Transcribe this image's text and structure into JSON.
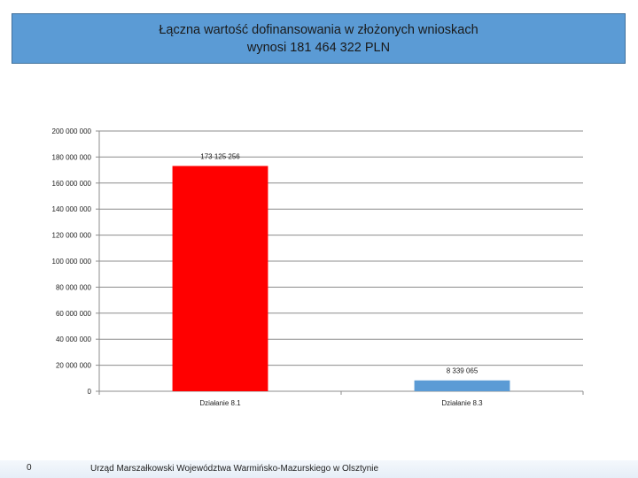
{
  "title": {
    "line1": "Łączna wartość dofinansowania w złożonych wnioskach",
    "line2": "wynosi 181 464 322 PLN"
  },
  "footer": {
    "slide_number": "0",
    "text": "Urząd Marszałkowski Województwa Warmińsko-Mazurskiego w Olsztynie"
  },
  "chart_data": {
    "type": "bar",
    "categories": [
      "Działanie 8.1",
      "Działanie 8.3"
    ],
    "values": [
      173125256,
      8339065
    ],
    "data_labels": [
      "173 125 256",
      "8 339 065"
    ],
    "colors": [
      "#ff0000",
      "#5b9bd5"
    ],
    "ylim": [
      0,
      200000000
    ],
    "yticks": [
      0,
      20000000,
      40000000,
      60000000,
      80000000,
      100000000,
      120000000,
      140000000,
      160000000,
      180000000,
      200000000
    ],
    "ytick_labels": [
      "0",
      "20 000 000",
      "40 000 000",
      "60 000 000",
      "80 000 000",
      "100 000 000",
      "120 000 000",
      "140 000 000",
      "160 000 000",
      "180 000 000",
      "200 000 000"
    ],
    "grid": true,
    "legend": "none"
  }
}
